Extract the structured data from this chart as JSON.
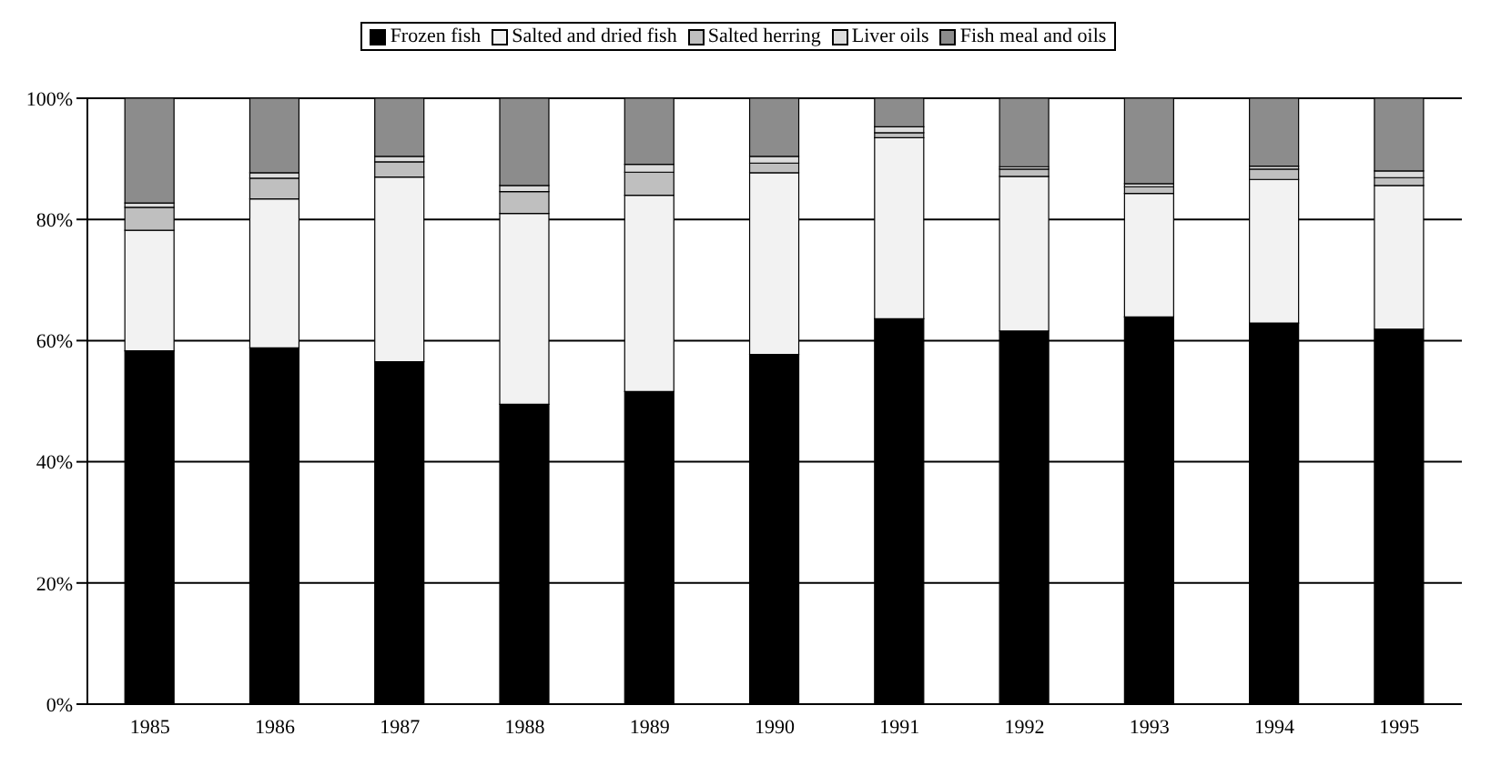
{
  "chart_data": {
    "type": "bar",
    "stacked": true,
    "categories": [
      "1985",
      "1986",
      "1987",
      "1988",
      "1989",
      "1990",
      "1991",
      "1992",
      "1993",
      "1994",
      "1995"
    ],
    "series": [
      {
        "name": "Frozen fish",
        "color": "#000000",
        "values": [
          58.3,
          58.8,
          56.5,
          49.5,
          51.6,
          57.7,
          63.6,
          61.6,
          63.9,
          62.9,
          61.9
        ]
      },
      {
        "name": "Salted and dried fish",
        "color": "#f2f2f2",
        "values": [
          19.9,
          24.6,
          30.5,
          31.5,
          32.4,
          30.0,
          29.9,
          25.5,
          20.4,
          23.7,
          23.7
        ]
      },
      {
        "name": "Salted herring",
        "color": "#bfbfbf",
        "values": [
          3.8,
          3.4,
          2.5,
          3.6,
          3.8,
          1.6,
          0.8,
          1.2,
          1.1,
          1.7,
          1.3
        ]
      },
      {
        "name": "Liver oils",
        "color": "#dcdcdc",
        "values": [
          0.7,
          0.9,
          0.9,
          1.0,
          1.3,
          1.1,
          1.0,
          0.4,
          0.5,
          0.5,
          1.1
        ]
      },
      {
        "name": "Fish meal and oils",
        "color": "#8c8c8c",
        "values": [
          17.3,
          12.3,
          9.6,
          14.4,
          10.9,
          9.6,
          4.7,
          11.3,
          14.1,
          11.2,
          12.0
        ]
      }
    ],
    "ylim": [
      0,
      100
    ],
    "yticks": [
      {
        "value": 0,
        "label": "0%"
      },
      {
        "value": 20,
        "label": "20%"
      },
      {
        "value": 40,
        "label": "40%"
      },
      {
        "value": 60,
        "label": "60%"
      },
      {
        "value": 80,
        "label": "80%"
      },
      {
        "value": 100,
        "label": "100%"
      }
    ],
    "grid": "y",
    "legend": "top"
  }
}
